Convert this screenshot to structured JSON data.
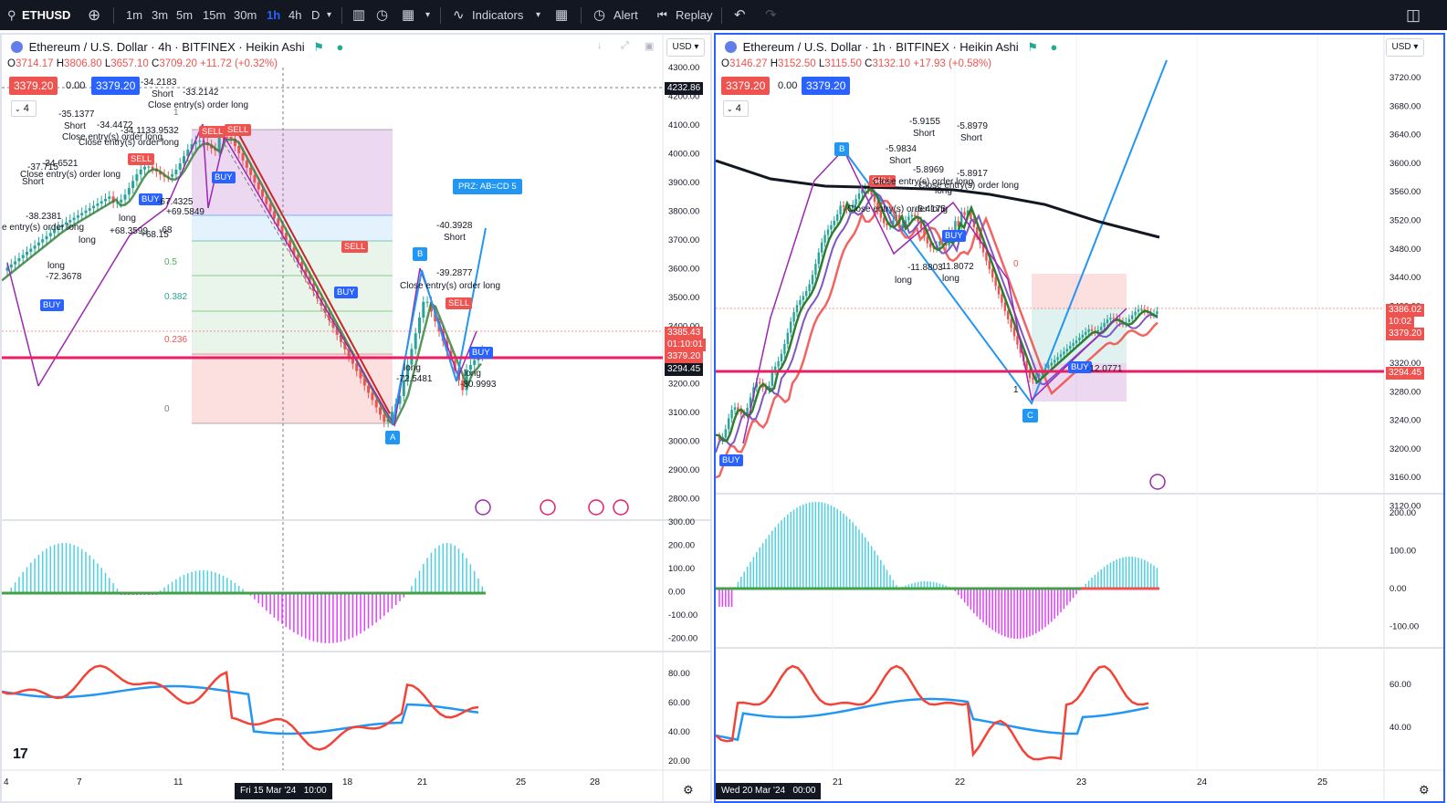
{
  "topbar": {
    "symbol": "ETHUSD",
    "intervals": [
      "1m",
      "3m",
      "5m",
      "15m",
      "30m",
      "1h",
      "4h",
      "D"
    ],
    "active_interval": "1h",
    "indicators_label": "Indicators",
    "alert_label": "Alert",
    "replay_label": "Replay"
  },
  "colors": {
    "up": "#26a69a",
    "down": "#ef5350",
    "accent": "#2962ff",
    "magenta": "#e91e63",
    "dark": "#131722"
  },
  "left": {
    "title": "Ethereum / U.S. Dollar · 4h · BITFINEX · Heikin Ashi",
    "ohlc": {
      "o": "3714.17",
      "h": "3806.80",
      "l": "3657.10",
      "c": "3709.20",
      "chg": "+11.72 (+0.32%)"
    },
    "bid": "3379.20",
    "spread": "0.00",
    "ask": "3379.20",
    "vol_setting": "4",
    "currency": "USD",
    "price_ticks": [
      "4300.00",
      "4200.00",
      "4100.00",
      "4000.00",
      "3900.00",
      "3800.00",
      "3700.00",
      "3600.00",
      "3500.00",
      "3400.00",
      "3300.00",
      "3200.00",
      "3100.00",
      "3000.00",
      "2900.00",
      "2800.00"
    ],
    "price_labels": {
      "crosshair": "4232.86",
      "last": "3385.43",
      "countdown": "01:10:01",
      "bid": "3379.20",
      "level": "3294.45"
    },
    "macd_ticks": [
      "300.00",
      "200.00",
      "100.00",
      "0.00",
      "-100.00",
      "-200.00"
    ],
    "osc_ticks": [
      "80.00",
      "60.00",
      "40.00",
      "20.00"
    ],
    "time_ticks": [
      "4",
      "7",
      "11",
      "18",
      "21",
      "25",
      "28"
    ],
    "crosshair_time": "Fri 15 Mar '24",
    "crosshair_time2": "10:00",
    "fib_levels": [
      "1",
      "0.5",
      "0.382",
      "0.236",
      "0"
    ],
    "prz_label": "PRZ: AB=CD 5",
    "points": {
      "a": "A",
      "b": "B"
    },
    "signals": [
      {
        "t": "SELL"
      },
      {
        "t": "SELL"
      },
      {
        "t": "SELL"
      },
      {
        "t": "BUY"
      },
      {
        "t": "BUY"
      },
      {
        "t": "BUY"
      },
      {
        "t": "SELL"
      },
      {
        "t": "BUY"
      },
      {
        "t": "BUY"
      },
      {
        "t": "SELL"
      }
    ],
    "annotations": [
      "-33.2142",
      "-34.2183",
      "Short",
      "Close entry(s) order long",
      "-35.1377",
      "Short",
      "-34.4472",
      "Close entry(s) order long",
      "-34.1133.9532",
      "Close entry(s) order long",
      "-37.715",
      "-34.6521",
      "Close entry(s) order long",
      "Short",
      "-38.2381",
      "e entry(s) order long",
      "long",
      "-72.3678",
      "long",
      "+68.3599",
      "-67.4325",
      "+69.5849",
      "long",
      "+68.15",
      "-68",
      "-40.3928",
      "Short",
      "-39.2877",
      "Close entry(s) order long",
      "long",
      "-72.5481",
      "long",
      "-80.9993"
    ]
  },
  "right": {
    "title": "Ethereum / U.S. Dollar · 1h · BITFINEX · Heikin Ashi",
    "ohlc": {
      "o": "3146.27",
      "h": "3152.50",
      "l": "3115.50",
      "c": "3132.10",
      "chg": "+17.93 (+0.58%)"
    },
    "bid": "3379.20",
    "spread": "0.00",
    "ask": "3379.20",
    "vol_setting": "4",
    "currency": "USD",
    "price_ticks": [
      "3720.00",
      "3680.00",
      "3640.00",
      "3600.00",
      "3560.00",
      "3520.00",
      "3480.00",
      "3440.00",
      "3400.00",
      "3360.00",
      "3320.00",
      "3280.00",
      "3240.00",
      "3200.00",
      "3160.00",
      "3120.00"
    ],
    "price_labels": {
      "last": "3386.02",
      "countdown": "10:02",
      "bid": "3379.20",
      "level": "3294.45"
    },
    "macd_ticks": [
      "200.00",
      "100.00",
      "0.00",
      "-100.00"
    ],
    "osc_ticks": [
      "60.00",
      "40.00"
    ],
    "time_ticks": [
      "21",
      "22",
      "23",
      "24",
      "25"
    ],
    "crosshair_time": "Wed 20 Mar '24",
    "crosshair_time2": "00:00",
    "points": {
      "b": "B",
      "c": "C"
    },
    "fib_levels": [
      "0",
      "1"
    ],
    "signals": [
      {
        "t": "BUY"
      },
      {
        "t": "BUY"
      },
      {
        "t": "BUY"
      },
      {
        "t": "SELL"
      }
    ],
    "annotations": [
      "-5.9155",
      "Short",
      "-5.8979",
      "Short",
      "-5.9834",
      "Short",
      "-5.8969",
      "-5.8917",
      "Close entry(s) order long",
      "Close entry(s) order long",
      "-6.4175",
      "Close entry(s) order long",
      "long",
      "-11.8803",
      "long",
      "-11.8072",
      "long",
      "-12.0771"
    ]
  }
}
